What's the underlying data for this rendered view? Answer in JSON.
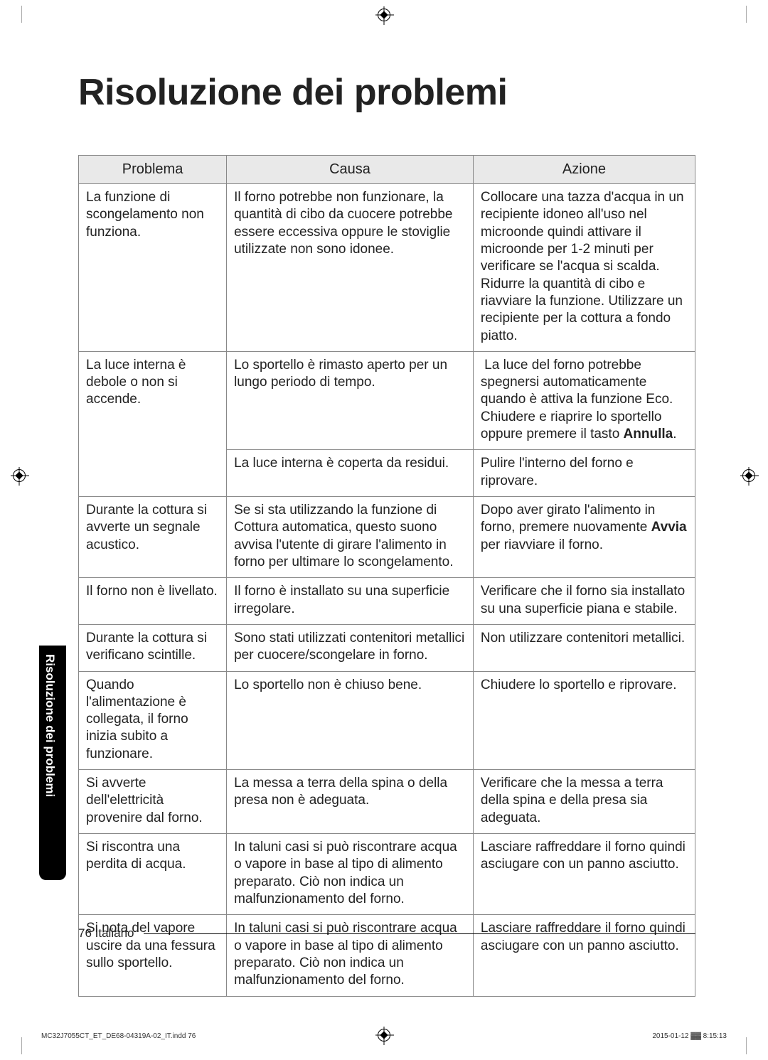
{
  "title": "Risoluzione dei problemi",
  "headers": {
    "problema": "Problema",
    "causa": "Causa",
    "azione": "Azione"
  },
  "rows": [
    {
      "p": "La funzione di scongelamento non funziona.",
      "c": "Il forno potrebbe non funzionare, la quantità di cibo da cuocere potrebbe essere eccessiva oppure le stoviglie utilizzate non sono idonee.",
      "a": "Collocare una tazza d'acqua in un recipiente idoneo all'uso nel microonde quindi attivare il microonde per 1-2 minuti per verificare se l'acqua si scalda. Ridurre la quantità di cibo e riavviare la funzione. Utilizzare un recipiente per la cottura a fondo piatto."
    },
    {
      "p": "La luce interna è debole o non si accende.",
      "p_rowspan": 2,
      "c": "Lo sportello è rimasto aperto per un lungo periodo di tempo.",
      "a_html": "&nbsp;La luce del forno potrebbe spegnersi automaticamente quando è attiva la funzione Eco. Chiudere e riaprire lo sportello oppure premere il tasto <b>Annulla</b>."
    },
    {
      "c": "La luce interna è coperta da residui.",
      "a": "Pulire l'interno del forno e riprovare."
    },
    {
      "p": "Durante la cottura si avverte un segnale acustico.",
      "c": "Se si sta utilizzando la funzione di Cottura automatica, questo suono avvisa l'utente di girare l'alimento in forno per ultimare lo scongelamento.",
      "a_html": "Dopo aver girato l'alimento in forno, premere nuovamente <b>Avvia</b> per riavviare il forno."
    },
    {
      "p": "Il forno non è livellato.",
      "c": "Il forno è installato su una superficie irregolare.",
      "a": "Verificare che il forno sia installato su una superficie piana e stabile."
    },
    {
      "p": "Durante la cottura si verificano scintille.",
      "c": "Sono stati utilizzati contenitori metallici per cuocere/scongelare in forno.",
      "a": "Non utilizzare contenitori metallici."
    },
    {
      "p": "Quando l'alimentazione è collegata, il forno inizia subito a funzionare.",
      "c": "Lo sportello non è chiuso bene.",
      "a": "Chiudere lo sportello e riprovare."
    },
    {
      "p": "Si avverte dell'elettricità provenire dal forno.",
      "c": "La messa a terra della spina o della presa non è adeguata.",
      "a": "Verificare che la messa a terra della spina e della presa sia adeguata."
    },
    {
      "p": "Si riscontra una perdita di acqua.",
      "c": "In taluni casi si può riscontrare acqua o vapore in base al tipo di alimento preparato. Ciò non indica un malfunzionamento del forno.",
      "a": "Lasciare raffreddare il forno quindi asciugare con un panno asciutto."
    },
    {
      "p": "Si nota del vapore uscire da una fessura sullo sportello.",
      "c": "In taluni casi si può riscontrare acqua o vapore in base al tipo di alimento preparato. Ciò non indica un malfunzionamento del forno.",
      "a": "Lasciare raffreddare il forno quindi asciugare con un panno asciutto."
    }
  ],
  "side_tab": "Risoluzione dei problemi",
  "footer": {
    "page": "76",
    "lang": "Italiano"
  },
  "imprint_left": "MC32J7055CT_ET_DE68-04319A-02_IT.indd   76",
  "imprint_right": "2015-01-12   ▓▓ 8:15:13"
}
